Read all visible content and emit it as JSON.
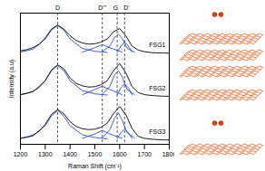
{
  "chart_data": {
    "type": "line",
    "x_label": "Raman Shift (cm⁻¹)",
    "y_label": "Intensity (a.u)",
    "xlim": [
      1200,
      1800
    ],
    "xticks": [
      1200,
      1300,
      1400,
      1500,
      1600,
      1700,
      1800
    ],
    "ylim": [
      -0.05,
      3.25
    ],
    "tick_labels": "x",
    "grid": false,
    "x": [
      1200,
      1225,
      1250,
      1275,
      1300,
      1325,
      1350,
      1375,
      1400,
      1425,
      1450,
      1475,
      1500,
      1525,
      1550,
      1575,
      1600,
      1625,
      1650,
      1675,
      1700,
      1725,
      1750,
      1775,
      1800
    ],
    "series": [
      {
        "name": "FSG1",
        "color": "#000000",
        "values": [
          2.3,
          2.33,
          2.38,
          2.46,
          2.62,
          2.85,
          2.95,
          2.85,
          2.68,
          2.56,
          2.5,
          2.47,
          2.48,
          2.52,
          2.6,
          2.78,
          2.86,
          2.68,
          2.42,
          2.32,
          2.28,
          2.26,
          2.25,
          2.25,
          2.24
        ],
        "fits": [
          {
            "color": "#2b4fcf",
            "x": [
              1200,
              1250,
              1300,
              1325,
              1350,
              1375,
              1400,
              1450,
              1500,
              1550
            ],
            "values": [
              2.27,
              2.34,
              2.6,
              2.82,
              2.94,
              2.82,
              2.6,
              2.36,
              2.29,
              2.26
            ]
          },
          {
            "color": "#2b4fcf",
            "x": [
              1450,
              1500,
              1530,
              1560,
              1610
            ],
            "values": [
              2.27,
              2.38,
              2.46,
              2.38,
              2.27
            ]
          },
          {
            "color": "#2b4fcf",
            "x": [
              1530,
              1560,
              1580,
              1595,
              1610,
              1630,
              1660
            ],
            "values": [
              2.28,
              2.42,
              2.64,
              2.72,
              2.62,
              2.37,
              2.27
            ]
          },
          {
            "color": "#2b4fcf",
            "x": [
              1590,
              1605,
              1620,
              1635,
              1650
            ],
            "values": [
              2.27,
              2.42,
              2.52,
              2.42,
              2.27
            ]
          }
        ]
      },
      {
        "name": "FSG2",
        "color": "#000000",
        "values": [
          1.2,
          1.23,
          1.28,
          1.38,
          1.55,
          1.82,
          1.95,
          1.85,
          1.62,
          1.48,
          1.42,
          1.39,
          1.4,
          1.45,
          1.55,
          1.8,
          1.98,
          1.75,
          1.4,
          1.25,
          1.2,
          1.18,
          1.17,
          1.16,
          1.16
        ],
        "fits": [
          {
            "color": "#2b4fcf",
            "x": [
              1200,
              1250,
              1300,
              1325,
              1350,
              1375,
              1400,
              1450,
              1500,
              1550
            ],
            "values": [
              1.2,
              1.27,
              1.55,
              1.8,
              1.93,
              1.8,
              1.55,
              1.3,
              1.22,
              1.19
            ]
          },
          {
            "color": "#2b4fcf",
            "x": [
              1450,
              1500,
              1530,
              1560,
              1610
            ],
            "values": [
              1.2,
              1.33,
              1.41,
              1.33,
              1.2
            ]
          },
          {
            "color": "#2b4fcf",
            "x": [
              1530,
              1560,
              1580,
              1595,
              1610,
              1630,
              1660
            ],
            "values": [
              1.21,
              1.4,
              1.7,
              1.8,
              1.65,
              1.33,
              1.2
            ]
          },
          {
            "color": "#2b4fcf",
            "x": [
              1590,
              1605,
              1620,
              1635,
              1650
            ],
            "values": [
              1.2,
              1.37,
              1.47,
              1.37,
              1.2
            ]
          }
        ]
      },
      {
        "name": "FSG3",
        "color": "#000000",
        "values": [
          0.1,
          0.13,
          0.18,
          0.28,
          0.45,
          0.7,
          0.82,
          0.72,
          0.52,
          0.4,
          0.34,
          0.32,
          0.33,
          0.38,
          0.48,
          0.72,
          0.9,
          0.7,
          0.35,
          0.15,
          0.1,
          0.08,
          0.07,
          0.06,
          0.06
        ],
        "fits": [
          {
            "color": "#2b4fcf",
            "x": [
              1200,
              1250,
              1300,
              1325,
              1350,
              1375,
              1400,
              1450,
              1500,
              1550
            ],
            "values": [
              0.1,
              0.16,
              0.42,
              0.66,
              0.8,
              0.66,
              0.42,
              0.19,
              0.12,
              0.09
            ]
          },
          {
            "color": "#2b4fcf",
            "x": [
              1450,
              1500,
              1530,
              1560,
              1610
            ],
            "values": [
              0.1,
              0.21,
              0.3,
              0.21,
              0.1
            ]
          },
          {
            "color": "#2b4fcf",
            "x": [
              1530,
              1560,
              1580,
              1595,
              1610,
              1630,
              1660
            ],
            "values": [
              0.12,
              0.31,
              0.61,
              0.74,
              0.56,
              0.24,
              0.11
            ]
          },
          {
            "color": "#2b4fcf",
            "x": [
              1590,
              1605,
              1620,
              1635,
              1650
            ],
            "values": [
              0.1,
              0.24,
              0.34,
              0.24,
              0.1
            ]
          }
        ]
      }
    ],
    "reference_lines": [
      {
        "x": 1350,
        "label": "D",
        "line_style": "dashed"
      },
      {
        "x": 1530,
        "label": "D'''",
        "line_style": "dashed"
      },
      {
        "x": 1590,
        "label": "G",
        "line_style": "dashed"
      },
      {
        "x": 1620,
        "label": "D'",
        "line_style": "dashed"
      }
    ]
  }
}
